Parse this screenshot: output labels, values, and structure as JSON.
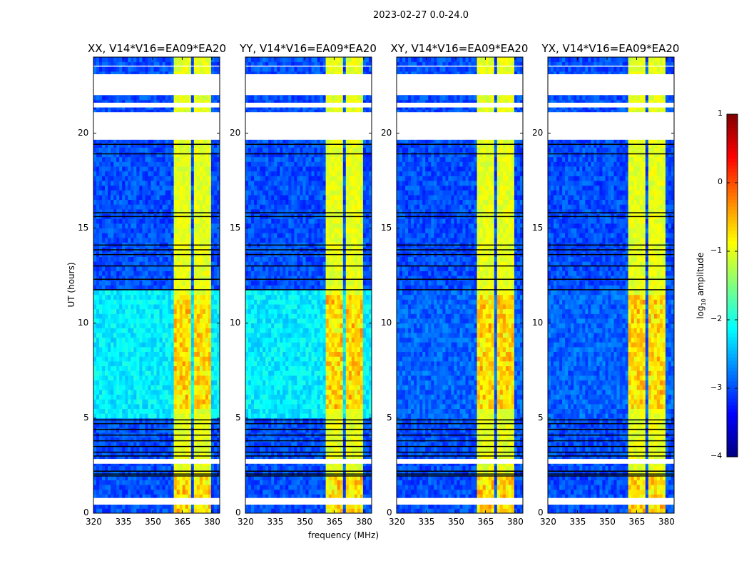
{
  "chart_data": {
    "type": "heatmap",
    "title": "2023-02-27 0.0-24.0",
    "xlabel": "frequency (MHz)",
    "ylabel": "UT (hours)",
    "xlim": [
      320,
      384
    ],
    "ylim": [
      0,
      24
    ],
    "xticks": [
      "320",
      "335",
      "350",
      "365",
      "380"
    ],
    "xtick_values": [
      320,
      335,
      350,
      365,
      380
    ],
    "yticks": [
      "0",
      "5",
      "10",
      "15",
      "20"
    ],
    "ytick_values": [
      0,
      5,
      10,
      15,
      20
    ],
    "colorbar": {
      "label": "log10 amplitude",
      "label_main": "log",
      "label_sub": "10",
      "label_rest": " amplitude",
      "range": [
        -4,
        1
      ],
      "ticks": [
        "1",
        "0",
        "−1",
        "−2",
        "−3",
        "−4"
      ],
      "tick_values": [
        1,
        0,
        -1,
        -2,
        -3,
        -4
      ],
      "colormap": "jet"
    },
    "panels": [
      {
        "title": "XX, V14*V16=EA09*EA20",
        "mid_level": -2.2
      },
      {
        "title": "YY, V14*V16=EA09*EA20",
        "mid_level": -2.2
      },
      {
        "title": "XY, V14*V16=EA09*EA20",
        "mid_level": -2.9
      },
      {
        "title": "YX, V14*V16=EA09*EA20",
        "mid_level": -2.9
      }
    ],
    "background_level": -3.0,
    "rfi_bands_MHz": [
      [
        360.7,
        365.3
      ],
      [
        365.8,
        369.9
      ],
      [
        370.4,
        374.6
      ],
      [
        375.1,
        380.0
      ]
    ],
    "rfi_level": -1.0,
    "flagged_time_ranges_h": [
      [
        0.45,
        0.8
      ],
      [
        2.6,
        2.85
      ],
      [
        19.65,
        21.1
      ],
      [
        21.35,
        21.6
      ],
      [
        22.0,
        23.1
      ],
      [
        23.5,
        23.55
      ]
    ],
    "dropout_times_h": [
      1.95,
      2.05,
      2.2,
      3.0,
      3.2,
      3.5,
      3.8,
      4.1,
      4.4,
      4.7,
      4.9,
      11.75,
      12.3,
      13.0,
      13.6,
      13.85,
      14.1,
      15.6,
      15.8,
      18.9,
      19.4
    ]
  }
}
